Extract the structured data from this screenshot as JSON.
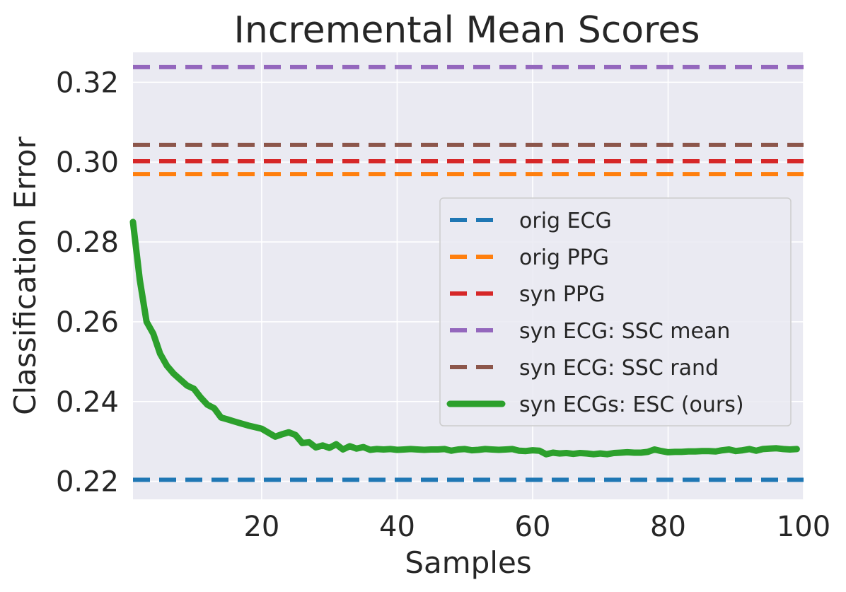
{
  "chart_data": {
    "type": "line",
    "title": "Incremental Mean Scores",
    "xlabel": "Samples",
    "ylabel": "Classification Error",
    "xlim": [
      1,
      100
    ],
    "ylim": [
      0.2155,
      0.3275
    ],
    "xticks": [
      20,
      40,
      60,
      80,
      100
    ],
    "xtick_labels": [
      "20",
      "40",
      "60",
      "80",
      "100"
    ],
    "yticks": [
      0.22,
      0.24,
      0.26,
      0.28,
      0.3,
      0.32
    ],
    "ytick_labels": [
      "0.22",
      "0.24",
      "0.26",
      "0.28",
      "0.30",
      "0.32"
    ],
    "grid": true,
    "legend_position": "center-right",
    "series": [
      {
        "name": "orig ECG",
        "style": "dashed",
        "color": "#1f77b4",
        "constant": 0.2204
      },
      {
        "name": "orig PPG",
        "style": "dashed",
        "color": "#ff7f0e",
        "constant": 0.297
      },
      {
        "name": "syn PPG",
        "style": "dashed",
        "color": "#d62728",
        "constant": 0.3002
      },
      {
        "name": "syn ECG: SSC mean",
        "style": "dashed",
        "color": "#9467bd",
        "constant": 0.3238
      },
      {
        "name": "syn ECG: SSC rand",
        "style": "dashed",
        "color": "#8c564b",
        "constant": 0.3043
      },
      {
        "name": "syn ECGs: ESC (ours)",
        "style": "solid",
        "color": "#2ca02c",
        "x": [
          1,
          2,
          3,
          4,
          5,
          6,
          7,
          8,
          9,
          10,
          11,
          12,
          13,
          14,
          15,
          16,
          17,
          18,
          19,
          20,
          21,
          22,
          23,
          24,
          25,
          26,
          27,
          28,
          29,
          30,
          31,
          32,
          33,
          34,
          35,
          36,
          37,
          38,
          39,
          40,
          41,
          42,
          43,
          44,
          45,
          46,
          47,
          48,
          49,
          50,
          51,
          52,
          53,
          54,
          55,
          56,
          57,
          58,
          59,
          60,
          61,
          62,
          63,
          64,
          65,
          66,
          67,
          68,
          69,
          70,
          71,
          72,
          73,
          74,
          75,
          76,
          77,
          78,
          79,
          80,
          81,
          82,
          83,
          84,
          85,
          86,
          87,
          88,
          89,
          90,
          91,
          92,
          93,
          94,
          95,
          96,
          97,
          98,
          99
        ],
        "values": [
          0.285,
          0.2705,
          0.26,
          0.257,
          0.252,
          0.249,
          0.247,
          0.2455,
          0.244,
          0.2432,
          0.241,
          0.2392,
          0.2383,
          0.236,
          0.2355,
          0.235,
          0.2345,
          0.234,
          0.2336,
          0.2332,
          0.2322,
          0.2312,
          0.2318,
          0.2323,
          0.2316,
          0.2296,
          0.2298,
          0.2285,
          0.229,
          0.2284,
          0.2293,
          0.228,
          0.2288,
          0.2282,
          0.2286,
          0.2279,
          0.2281,
          0.228,
          0.2281,
          0.2279,
          0.228,
          0.2281,
          0.228,
          0.2279,
          0.228,
          0.228,
          0.2281,
          0.2277,
          0.228,
          0.2281,
          0.2278,
          0.2279,
          0.2281,
          0.228,
          0.2279,
          0.228,
          0.2281,
          0.2277,
          0.2276,
          0.2278,
          0.2277,
          0.2268,
          0.2272,
          0.227,
          0.2271,
          0.2269,
          0.2271,
          0.227,
          0.2268,
          0.227,
          0.2268,
          0.2271,
          0.2272,
          0.2273,
          0.2272,
          0.2272,
          0.2274,
          0.228,
          0.2276,
          0.2273,
          0.2274,
          0.2274,
          0.2275,
          0.2275,
          0.2276,
          0.2276,
          0.2275,
          0.2278,
          0.228,
          0.2276,
          0.2278,
          0.2281,
          0.2277,
          0.2281,
          0.2282,
          0.2283,
          0.2281,
          0.228,
          0.2281
        ]
      }
    ]
  }
}
